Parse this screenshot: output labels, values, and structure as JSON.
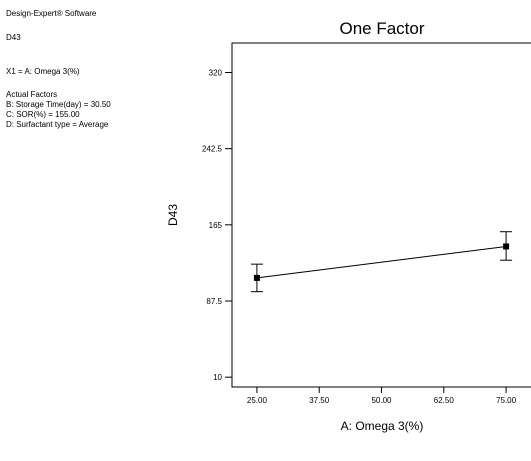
{
  "info": {
    "software": "Design-Expert® Software",
    "response": "D43",
    "factor_line": "X1 = A: Omega 3(%)",
    "actual_factors_title": "Actual Factors",
    "actual_factors": [
      "B: Storage Time(day) = 30.50",
      "C: SOR(%) = 155.00",
      "D: Surfactant type = Average"
    ]
  },
  "chart_data": {
    "type": "line",
    "title": "One Factor",
    "xlabel": "A: Omega 3(%)",
    "ylabel": "D43",
    "xlim": [
      20,
      80
    ],
    "ylim": [
      0,
      350
    ],
    "x_ticks": [
      "25.00",
      "37.50",
      "50.00",
      "62.50",
      "75.00"
    ],
    "y_ticks": [
      "10",
      "87.5",
      "165",
      "242.5",
      "320"
    ],
    "grid": false,
    "series": [
      {
        "x": [
          25,
          75
        ],
        "y": [
          111,
          143
        ],
        "err_low": [
          97,
          129
        ],
        "err_high": [
          125,
          158
        ]
      }
    ]
  }
}
